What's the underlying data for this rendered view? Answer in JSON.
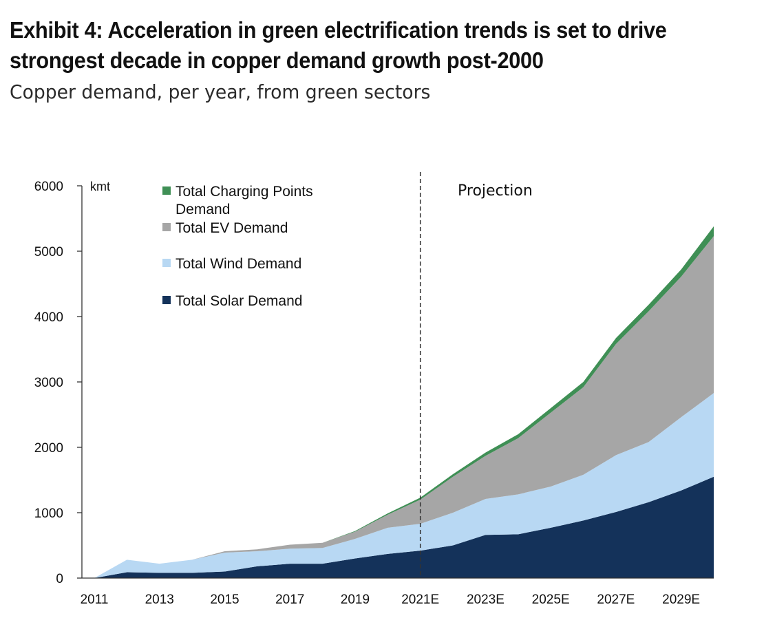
{
  "title_line1": "Exhibit 4: Acceleration in green electrification trends is set to drive",
  "title_line2": "strongest decade in copper demand growth post-2000",
  "subtitle": "Copper demand, per year, from green sectors",
  "chart_data": {
    "type": "area",
    "stacked": true,
    "unit_label": "kmt",
    "annotation": "Projection",
    "annotation_divider_at": "2021E",
    "x": [
      "2011",
      "2012",
      "2013",
      "2014",
      "2015",
      "2016",
      "2017",
      "2018",
      "2019",
      "2020",
      "2021E",
      "2022E",
      "2023E",
      "2024E",
      "2025E",
      "2026E",
      "2027E",
      "2028E",
      "2029E",
      "2030E"
    ],
    "x_tick_labels": [
      "2011",
      "2013",
      "2015",
      "2017",
      "2019",
      "2021E",
      "2023E",
      "2025E",
      "2027E",
      "2029E"
    ],
    "ylim": [
      0,
      6000
    ],
    "y_ticks": [
      0,
      1000,
      2000,
      3000,
      4000,
      5000,
      6000
    ],
    "grid": false,
    "legend_position": "top-left",
    "series": [
      {
        "name": "Total Solar Demand",
        "color": "#14325a",
        "values": [
          0,
          90,
          80,
          80,
          100,
          180,
          220,
          220,
          300,
          370,
          420,
          500,
          660,
          670,
          770,
          880,
          1010,
          1160,
          1340,
          1550
        ]
      },
      {
        "name": "Total Wind Demand",
        "color": "#b8d8f3",
        "values": [
          0,
          190,
          140,
          200,
          290,
          230,
          230,
          240,
          300,
          400,
          410,
          500,
          550,
          610,
          630,
          700,
          870,
          920,
          1120,
          1280
        ]
      },
      {
        "name": "Total EV Demand",
        "color": "#a6a6a6",
        "values": [
          0,
          0,
          0,
          0,
          20,
          30,
          60,
          80,
          110,
          200,
          370,
          550,
          660,
          860,
          1130,
          1340,
          1700,
          2000,
          2150,
          2400
        ]
      },
      {
        "name": "Total Charging Points Demand",
        "color": "#3f8f55",
        "values": [
          0,
          0,
          0,
          0,
          0,
          0,
          0,
          0,
          10,
          20,
          30,
          40,
          50,
          60,
          70,
          80,
          90,
          100,
          110,
          150
        ]
      }
    ]
  }
}
